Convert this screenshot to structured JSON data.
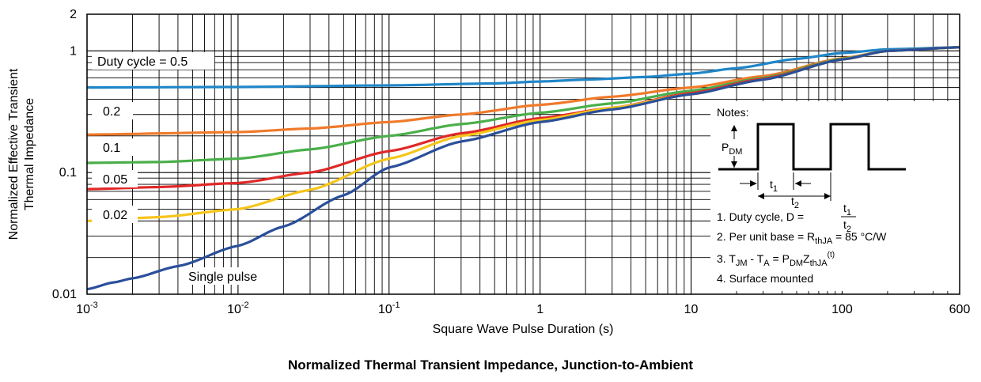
{
  "caption": "Normalized Thermal Transient Impedance, Junction-to-Ambient",
  "chart_data": {
    "type": "line",
    "title": "Normalized Thermal Transient Impedance, Junction-to-Ambient",
    "xlabel": "Square Wave Pulse Duration (s)",
    "ylabel_line1": "Normalized Effective Transient",
    "ylabel_line2": "Thermal Impedance",
    "xscale": "log",
    "yscale": "log",
    "xlim": [
      0.001,
      600
    ],
    "ylim": [
      0.01,
      2
    ],
    "grid": true,
    "x_ticks": [
      {
        "value": 0.001,
        "base": "10",
        "exp": "-3"
      },
      {
        "value": 0.01,
        "base": "10",
        "exp": "-2"
      },
      {
        "value": 0.1,
        "base": "10",
        "exp": "-1"
      },
      {
        "value": 1,
        "base": "1",
        "exp": ""
      },
      {
        "value": 10,
        "base": "10",
        "exp": ""
      },
      {
        "value": 100,
        "base": "100",
        "exp": ""
      },
      {
        "value": 600,
        "base": "600",
        "exp": ""
      }
    ],
    "y_ticks": [
      {
        "value": 2,
        "label": "2"
      },
      {
        "value": 1,
        "label": "1"
      },
      {
        "value": 0.1,
        "label": "0.1"
      },
      {
        "value": 0.01,
        "label": "0.01"
      }
    ],
    "series": [
      {
        "name": "Duty cycle = 0.5",
        "color": "#1f86c8",
        "x": [
          0.001,
          0.01,
          0.1,
          0.5,
          1,
          2,
          5,
          10,
          20,
          50,
          100,
          200,
          600
        ],
        "y": [
          0.5,
          0.505,
          0.52,
          0.54,
          0.56,
          0.58,
          0.61,
          0.65,
          0.72,
          0.86,
          0.96,
          1.03,
          1.07
        ]
      },
      {
        "name": "0.2",
        "color": "#f07a2a",
        "x": [
          0.001,
          0.01,
          0.03,
          0.1,
          0.3,
          1,
          3,
          10,
          30,
          100,
          200,
          600
        ],
        "y": [
          0.205,
          0.215,
          0.23,
          0.26,
          0.3,
          0.36,
          0.42,
          0.5,
          0.62,
          0.87,
          1.0,
          1.07
        ]
      },
      {
        "name": "0.1",
        "color": "#4aaf4a",
        "x": [
          0.001,
          0.003,
          0.01,
          0.03,
          0.1,
          0.3,
          1,
          3,
          10,
          30,
          100,
          200,
          600
        ],
        "y": [
          0.12,
          0.122,
          0.13,
          0.155,
          0.2,
          0.25,
          0.31,
          0.37,
          0.47,
          0.6,
          0.86,
          1.0,
          1.07
        ]
      },
      {
        "name": "0.05",
        "color": "#e02828",
        "x": [
          0.001,
          0.003,
          0.01,
          0.03,
          0.1,
          0.3,
          1,
          3,
          10,
          30,
          100,
          200,
          600
        ],
        "y": [
          0.073,
          0.076,
          0.082,
          0.1,
          0.15,
          0.21,
          0.28,
          0.34,
          0.45,
          0.59,
          0.85,
          1.0,
          1.07
        ]
      },
      {
        "name": "0.02",
        "color": "#f5c51b",
        "x": [
          0.001,
          0.003,
          0.01,
          0.03,
          0.1,
          0.3,
          1,
          3,
          10,
          30,
          100,
          200,
          600
        ],
        "y": [
          0.04,
          0.043,
          0.05,
          0.072,
          0.13,
          0.2,
          0.27,
          0.34,
          0.44,
          0.58,
          0.85,
          1.0,
          1.07
        ]
      },
      {
        "name": "Single pulse",
        "color": "#2a4f9a",
        "x": [
          0.001,
          0.0015,
          0.002,
          0.004,
          0.01,
          0.02,
          0.05,
          0.1,
          0.3,
          1,
          3,
          10,
          30,
          100,
          200,
          600
        ],
        "y": [
          0.011,
          0.0125,
          0.0135,
          0.017,
          0.025,
          0.036,
          0.065,
          0.11,
          0.18,
          0.26,
          0.33,
          0.44,
          0.58,
          0.85,
          1.0,
          1.07
        ]
      }
    ],
    "series_labels": [
      "Duty cycle = 0.5",
      "0.2",
      "0.1",
      "0.05",
      "0.02",
      "Single pulse"
    ],
    "notes": {
      "heading": "Notes:",
      "pdm": "P",
      "pdm_sub": "DM",
      "t1": "t",
      "t1_sub": "1",
      "t2": "t",
      "t2_sub": "2",
      "n1": "1. Duty cycle, D =",
      "n2_pre": "2. Per unit base = R",
      "n2_sub": "thJA",
      "n2_post": " = 85 °C/W",
      "n3_a": "3. T",
      "n3_a_sub": "JM",
      "n3_b": " - T",
      "n3_b_sub": "A",
      "n3_c": " = P",
      "n3_c_sub": "DM",
      "n3_d": "Z",
      "n3_d_sub": "thJA",
      "n3_e": "(t)",
      "n4": "4. Surface mounted"
    }
  }
}
